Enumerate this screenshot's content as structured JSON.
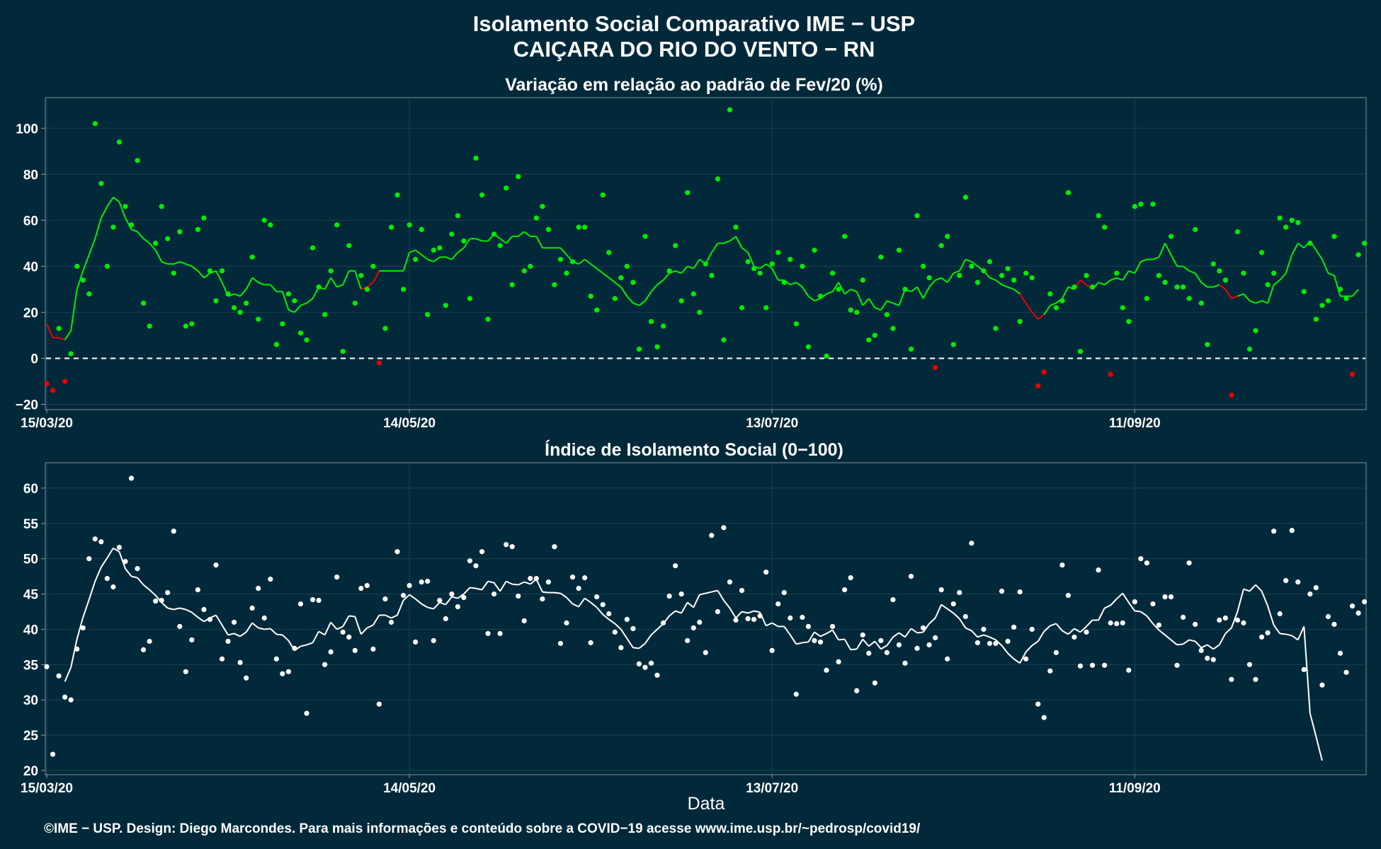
{
  "header": {
    "title_line1": "Isolamento Social Comparativo IME − USP",
    "title_line2": "CAIÇARA DO RIO DO VENTO − RN"
  },
  "footer": {
    "credit": "©IME − USP. Design: Diego Marcondes. Para mais informações e conteúdo sobre a COVID−19 acesse www.ime.usp.br/~pedrosp/covid19/"
  },
  "colors": {
    "background": "#02293a",
    "positive": "#00ee00",
    "negative": "#ee0000",
    "index_series": "#ffffff",
    "zero_line": "#ffffff"
  },
  "chart_data": [
    {
      "type": "scatter",
      "title": "Variação em relação ao padrão de Fev/20 (%)",
      "xlabel": "",
      "ylabel": "",
      "x_tick_labels": [
        "15/03/20",
        "14/05/20",
        "13/07/20",
        "11/09/20"
      ],
      "x_tick_days": [
        0,
        60,
        120,
        180
      ],
      "x_range_days": [
        0,
        217
      ],
      "y_ticks": [
        -20,
        0,
        20,
        40,
        60,
        80,
        100
      ],
      "ylim": [
        -22,
        113
      ],
      "reference_line": 0,
      "grid": true,
      "point_color_rule": "green when >= 0, red when < 0",
      "series": [
        {
          "values": [
            -11,
            -14,
            13,
            -10,
            2,
            40,
            34,
            28,
            102,
            76,
            40,
            57,
            94,
            66,
            58,
            86,
            24,
            14,
            50,
            66,
            52,
            37,
            55,
            14,
            15,
            56,
            61,
            38,
            25,
            38,
            28,
            22,
            20,
            24,
            44,
            17,
            60,
            58,
            6,
            15,
            28,
            25,
            11,
            8,
            48,
            31,
            19,
            38,
            58,
            3,
            49,
            24,
            36,
            30,
            40,
            -2,
            13,
            57,
            71,
            30,
            58,
            43,
            56,
            19,
            47,
            48,
            23,
            54,
            62,
            51,
            26,
            87,
            71,
            17,
            54,
            49,
            74,
            32,
            79,
            38,
            40,
            61,
            66,
            56,
            32,
            43,
            37,
            42,
            57,
            57,
            27,
            21,
            71,
            46,
            26,
            35,
            40,
            33,
            4,
            53,
            16,
            5,
            14,
            38,
            49,
            25,
            72,
            28,
            20,
            41,
            36,
            78,
            8,
            108,
            57,
            22,
            42,
            39,
            37,
            22,
            41,
            46,
            33,
            43,
            15,
            40,
            5,
            47,
            27,
            1,
            37,
            30,
            53,
            21,
            20,
            34,
            8,
            10,
            44,
            19,
            13,
            47,
            30,
            4,
            62,
            40,
            35,
            -4,
            49,
            53,
            6,
            36,
            70,
            40,
            33,
            38,
            42,
            13,
            36,
            39,
            34,
            16,
            37,
            35,
            -12,
            -6,
            28,
            22,
            25,
            72,
            31,
            3,
            36,
            31,
            62,
            57,
            -7,
            37,
            22,
            16,
            66,
            67,
            26,
            67,
            36,
            33,
            53,
            31,
            31,
            26,
            56,
            24,
            6,
            41,
            38,
            34,
            -16,
            55,
            37,
            4,
            12,
            46,
            32,
            37,
            61,
            57,
            60,
            59,
            29,
            50,
            17,
            23,
            25,
            53,
            30,
            26,
            -7,
            45,
            50
          ]
        },
        {
          "name": "média móvel",
          "values": [
            15,
            9,
            9,
            8,
            12,
            30,
            38,
            45,
            52,
            61,
            66,
            70,
            68,
            61,
            56,
            55,
            52,
            50,
            47,
            42,
            41,
            41,
            42,
            41,
            40,
            38,
            35,
            37,
            38,
            33,
            27,
            28,
            27,
            30,
            35,
            33,
            32,
            32,
            29,
            29,
            21,
            20,
            23,
            24,
            26,
            31,
            30,
            35,
            31,
            32,
            38,
            38,
            30,
            31,
            33,
            38,
            38,
            38,
            38,
            38,
            46,
            47,
            45,
            43,
            42,
            44,
            44,
            43,
            46,
            48,
            52,
            52,
            51,
            51,
            54,
            52,
            50,
            53,
            53,
            55,
            53,
            53,
            48,
            48,
            48,
            48,
            45,
            42,
            41,
            43,
            41,
            39,
            37,
            35,
            33,
            31,
            27,
            24,
            23,
            25,
            29,
            32,
            34,
            37,
            38,
            37,
            40,
            39,
            43,
            41,
            46,
            50,
            50,
            51,
            53,
            48,
            46,
            40,
            39,
            41,
            39,
            34,
            34,
            32,
            33,
            31,
            27,
            25,
            26,
            28,
            29,
            33,
            28,
            30,
            29,
            23,
            26,
            22,
            21,
            25,
            24,
            23,
            30,
            29,
            31,
            26,
            31,
            34,
            35,
            33,
            37,
            38,
            43,
            42,
            40,
            38,
            35,
            34,
            32,
            31,
            30,
            28,
            24,
            20,
            17,
            19,
            23,
            24,
            26,
            31,
            30,
            34,
            32,
            30,
            33,
            32,
            34,
            35,
            34,
            38,
            37,
            42,
            43,
            43,
            44,
            50,
            45,
            40,
            40,
            38,
            37,
            33,
            31,
            31,
            32,
            30,
            26,
            27,
            28,
            25,
            24,
            25,
            24,
            32,
            34,
            37,
            45,
            50,
            48,
            51,
            47,
            43,
            37,
            36,
            27,
            27,
            27,
            30
          ]
        }
      ]
    },
    {
      "type": "scatter",
      "title": "Índice de Isolamento Social (0−100)",
      "xlabel": "Data",
      "ylabel": "",
      "x_tick_labels": [
        "15/03/20",
        "14/05/20",
        "13/07/20",
        "11/09/20"
      ],
      "x_tick_days": [
        0,
        60,
        120,
        180
      ],
      "x_range_days": [
        0,
        217
      ],
      "y_ticks": [
        20,
        25,
        30,
        35,
        40,
        45,
        50,
        55,
        60
      ],
      "ylim": [
        19.5,
        63.5
      ],
      "grid": true,
      "series": [
        {
          "values": [
            34.7,
            22.3,
            33.4,
            30.4,
            30,
            37.2,
            40.2,
            50,
            52.8,
            52.4,
            47.2,
            46,
            51.6,
            49.6,
            61.4,
            48.6,
            37.1,
            38.3,
            44,
            44.1,
            45.2,
            53.9,
            40.4,
            34,
            38.5,
            45.6,
            42.8,
            41.4,
            49.1,
            35.8,
            38.3,
            41,
            35.3,
            33.1,
            43,
            45.8,
            41.6,
            47.1,
            35.8,
            33.7,
            34,
            37.3,
            43.6,
            28.1,
            44.2,
            44.1,
            35,
            36.8,
            47.4,
            39.6,
            38.9,
            37,
            45.8,
            46.2,
            37.2,
            29.4,
            44.3,
            41,
            51,
            44.8,
            46.2,
            38.2,
            46.7,
            46.8,
            38.4,
            44.1,
            41.5,
            45,
            43.2,
            44.5,
            49.7,
            49,
            51,
            39.4,
            45,
            39.4,
            52,
            51.7,
            44.7,
            41.2,
            47.2,
            47.2,
            44.3,
            46.7,
            51.7,
            38,
            40.9,
            47.4,
            45.8,
            47.3,
            38.1,
            44.6,
            43.5,
            42.2,
            39.6,
            37.4,
            41.4,
            40.1,
            35.1,
            34.6,
            35.2,
            33.5,
            40.9,
            44.7,
            49,
            45,
            38.4,
            40.2,
            41,
            36.7,
            53.3,
            42.5,
            54.4,
            46.7,
            41.3,
            45.5,
            41.5,
            41.4,
            41.9,
            48.1,
            37,
            43.6,
            45.2,
            41.6,
            30.8,
            41.7,
            40.4,
            38.4,
            38.2,
            34.2,
            40.4,
            35.4,
            45.6,
            47.3,
            31.3,
            39.2,
            36.6,
            32.4,
            38.4,
            36.7,
            44.2,
            37.8,
            35.2,
            47.5,
            37.3,
            40.2,
            37.8,
            38.8,
            45.6,
            35.8,
            43.6,
            45.2,
            41.8,
            52.2,
            38.1,
            40,
            38,
            38,
            45.4,
            38.3,
            40.3,
            45.3,
            35.8,
            40,
            29.4,
            27.5,
            34.1,
            36.7,
            49.1,
            44.8,
            38.9,
            34.8,
            39.6,
            34.9,
            48.4,
            34.9,
            40.9,
            40.8,
            40.9,
            34.2,
            43.9,
            50,
            49.4,
            43.6,
            40.6,
            44.6,
            44.6,
            34.9,
            41.7,
            49.4,
            40.7,
            37,
            35.9,
            35.7,
            41.3,
            41.6,
            32.9,
            41.3,
            40.9,
            35,
            32.9,
            38.9,
            39.5,
            53.9,
            42.2,
            46.9,
            54,
            46.7,
            34.3,
            45,
            45.9,
            32.1,
            41.8,
            40.7,
            36.6,
            33.9,
            43.3,
            42.3,
            43.9
          ]
        },
        {
          "name": "média móvel",
          "values": [
            null,
            null,
            null,
            32.6,
            34.6,
            38.6,
            41.7,
            44.2,
            46.8,
            48.8,
            50.1,
            51.5,
            51,
            48.6,
            47.5,
            47.3,
            46.3,
            45.6,
            44.8,
            43.8,
            43,
            42.8,
            43,
            42.8,
            42.4,
            41.7,
            41.1,
            41.6,
            42,
            40.6,
            39.2,
            39.4,
            39,
            39.6,
            40.9,
            40.2,
            40,
            40.1,
            39.3,
            39.2,
            38.4,
            37,
            37.6,
            37.8,
            38.1,
            39.7,
            39.2,
            41,
            40,
            40.4,
            41.9,
            41.8,
            39.3,
            40.2,
            40.6,
            42,
            42,
            41.6,
            42,
            44.1,
            44.9,
            44.3,
            43.6,
            43.1,
            42.9,
            43.8,
            43.5,
            44.6,
            44.4,
            45,
            45.9,
            45.8,
            45.6,
            46.8,
            46.6,
            45.4,
            46.8,
            46.4,
            46.3,
            46.7,
            46.4,
            47.1,
            45.3,
            45.2,
            45.2,
            45.1,
            44.5,
            43.6,
            43.2,
            44.4,
            43.8,
            43.1,
            42.1,
            41.4,
            40.8,
            40,
            38.7,
            37.4,
            37.3,
            38,
            39.2,
            40,
            40.8,
            41.9,
            42.6,
            42.3,
            43.8,
            43.1,
            44.9,
            45.1,
            45.3,
            45.5,
            44.1,
            43,
            41.6,
            42.5,
            42.3,
            42.6,
            42.4,
            40.5,
            40.9,
            40.4,
            40.4,
            39.2,
            37.9,
            38.1,
            38.2,
            39.6,
            39,
            39.4,
            39.9,
            38.5,
            38.6,
            37.1,
            37.2,
            38.6,
            37.6,
            38.3,
            37.2,
            37.7,
            38.9,
            39.5,
            38.9,
            40.1,
            39.5,
            39.6,
            40.8,
            41.6,
            43.5,
            42.9,
            42.3,
            41.5,
            40.2,
            39.8,
            38.9,
            39.2,
            38.9,
            38.5,
            37.7,
            36.6,
            35.8,
            35.2,
            36.8,
            37.7,
            38.3,
            39.7,
            40.5,
            40.8,
            39.8,
            39.3,
            40.1,
            39.6,
            40.4,
            41.3,
            41.3,
            43,
            43.4,
            44.3,
            45.1,
            43.8,
            42.6,
            42.5,
            41.9,
            40.8,
            39.9,
            39.2,
            38.5,
            37.8,
            37.9,
            38.5,
            38.3,
            37.4,
            37.8,
            37.2,
            37.8,
            39.4,
            40.2,
            42.5,
            45.7,
            45.4,
            46.3,
            45.4,
            43.3,
            40.6,
            39.4,
            39.3,
            39.1,
            38.5,
            40.4,
            28.1,
            24.8,
            21.4
          ]
        }
      ]
    }
  ]
}
